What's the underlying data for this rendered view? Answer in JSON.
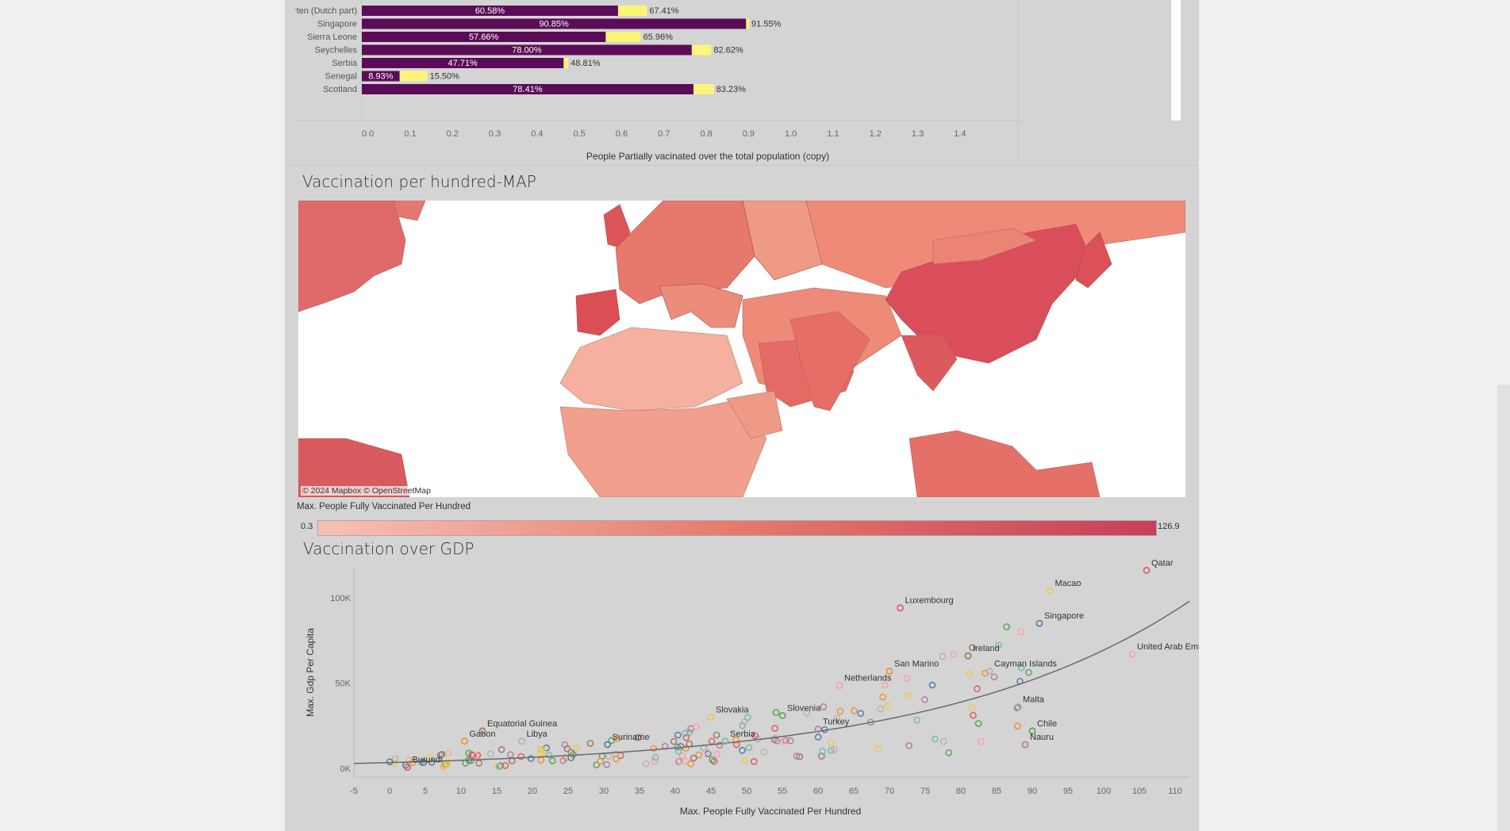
{
  "bar_section": {
    "rows": [
      {
        "country": "Sint Maarten (Dutch part)",
        "partial": 0.6058,
        "full": 0.6741,
        "partial_label": "60.58%",
        "full_label": "67.41%"
      },
      {
        "country": "Singapore",
        "partial": 0.9085,
        "full": 0.9155,
        "partial_label": "90.85%",
        "full_label": "91.55%"
      },
      {
        "country": "Sierra Leone",
        "partial": 0.5766,
        "full": 0.6596,
        "partial_label": "57.66%",
        "full_label": "65.96%"
      },
      {
        "country": "Seychelles",
        "partial": 0.78,
        "full": 0.8262,
        "partial_label": "78.00%",
        "full_label": "82.62%"
      },
      {
        "country": "Serbia",
        "partial": 0.4771,
        "full": 0.4881,
        "partial_label": "47.71%",
        "full_label": "48.81%"
      },
      {
        "country": "Senegal",
        "partial": 0.0893,
        "full": 0.155,
        "partial_label": "8.93%",
        "full_label": "15.50%"
      },
      {
        "country": "Scotland",
        "partial": 0.7841,
        "full": 0.8323,
        "partial_label": "78.41%",
        "full_label": "83.23%"
      }
    ],
    "x_ticks": [
      "0.0",
      "0.1",
      "0.2",
      "0.3",
      "0.4",
      "0.5",
      "0.6",
      "0.7",
      "0.8",
      "0.9",
      "1.0",
      "1.1",
      "1.2",
      "1.3",
      "1.4"
    ],
    "x_axis_label": "People Partially vacinated over the total population (copy)",
    "colors": {
      "partial": "#5a0c56",
      "full": "#fbf67a"
    }
  },
  "map_section": {
    "title": "Vaccination per hundred-MAP",
    "attribution": "© 2024 Mapbox  © OpenStreetMap",
    "legend_title": "Max. People Fully Vaccinated Per Hundred",
    "legend_min": "0.3",
    "legend_max": "126.9",
    "colors": {
      "low": "#f8c0b6",
      "high": "#c8405a",
      "ocean": "#ffffff"
    }
  },
  "scatter_section": {
    "title": "Vaccination over GDP",
    "chart_data": {
      "type": "scatter",
      "xlabel": "Max. People Fully Vaccinated Per Hundred",
      "ylabel": "Max. Gdp Per Capita",
      "xlim": [
        -5,
        112
      ],
      "ylim": [
        -5000,
        118000
      ],
      "x_ticks": [
        "-5",
        "0",
        "5",
        "10",
        "15",
        "20",
        "25",
        "30",
        "35",
        "40",
        "45",
        "50",
        "55",
        "60",
        "65",
        "70",
        "75",
        "80",
        "85",
        "90",
        "95",
        "100",
        "105",
        "110"
      ],
      "y_ticks": [
        "0K",
        "50K",
        "100K"
      ],
      "labeled_points": [
        {
          "label": "Burundi",
          "x": 2.5,
          "y": 700
        },
        {
          "label": "Gabon",
          "x": 10.5,
          "y": 16000
        },
        {
          "label": "Equatorial Guinea",
          "x": 13,
          "y": 22000
        },
        {
          "label": "Libya",
          "x": 18.5,
          "y": 16000
        },
        {
          "label": "Suriname",
          "x": 30.5,
          "y": 14000
        },
        {
          "label": "Slovakia",
          "x": 45,
          "y": 30000
        },
        {
          "label": "Serbia",
          "x": 47,
          "y": 16000
        },
        {
          "label": "Slovenia",
          "x": 55,
          "y": 31000
        },
        {
          "label": "Turkey",
          "x": 60,
          "y": 23000
        },
        {
          "label": "Netherlands",
          "x": 63,
          "y": 48500
        },
        {
          "label": "Luxembourg",
          "x": 71.5,
          "y": 94000
        },
        {
          "label": "San Marino",
          "x": 70,
          "y": 57000
        },
        {
          "label": "Ireland",
          "x": 81,
          "y": 66000
        },
        {
          "label": "Cayman Islands",
          "x": 84,
          "y": 57000
        },
        {
          "label": "Singapore",
          "x": 91,
          "y": 85000
        },
        {
          "label": "Macao",
          "x": 92.5,
          "y": 104000
        },
        {
          "label": "Malta",
          "x": 88,
          "y": 36000
        },
        {
          "label": "Chile",
          "x": 90,
          "y": 22000
        },
        {
          "label": "Nauru",
          "x": 89,
          "y": 14000
        },
        {
          "label": "United Arab Emirates",
          "x": 104,
          "y": 67000
        },
        {
          "label": "Qatar",
          "x": 106,
          "y": 116000
        }
      ],
      "trend": {
        "type": "exponential",
        "a": 4000,
        "b": 0.0286
      }
    }
  }
}
